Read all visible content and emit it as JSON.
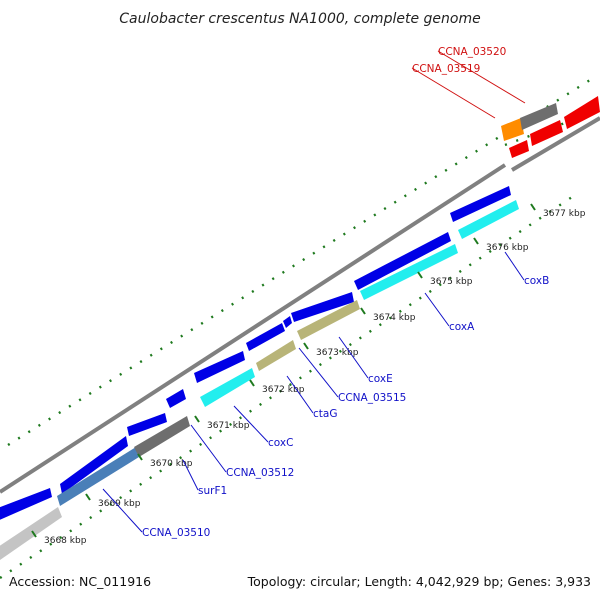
{
  "title": "Caulobacter crescentus NA1000, complete genome",
  "footer": {
    "accession": "Accession: NC_011916",
    "summary": "Topology: circular; Length: 4,042,929 bp; Genes: 3,933"
  },
  "colors": {
    "background": "#ffffff",
    "backbone": "#808080",
    "tick": "#1f7a1f",
    "label_blue": "#1010c8",
    "label_red": "#d01010",
    "blue": "#0000e6",
    "cyan": "#22eeee",
    "khaki": "#b8b478",
    "gray": "#6e6e6e",
    "lightgray": "#c4c4c4",
    "steel": "#4a7fb8",
    "red": "#f00000",
    "orange": "#ff8c00"
  },
  "kbp_ticks": [
    {
      "label": "3668 kbp"
    },
    {
      "label": "3669 kbp"
    },
    {
      "label": "3670 kbp"
    },
    {
      "label": "3671 kbp"
    },
    {
      "label": "3672 kbp"
    },
    {
      "label": "3673 kbp"
    },
    {
      "label": "3674 kbp"
    },
    {
      "label": "3675 kbp"
    },
    {
      "label": "3676 kbp"
    },
    {
      "label": "3677 kbp"
    }
  ],
  "gene_labels": [
    {
      "name": "CCNA_03510",
      "color": "blue"
    },
    {
      "name": "surF1",
      "color": "blue"
    },
    {
      "name": "CCNA_03512",
      "color": "blue"
    },
    {
      "name": "coxC",
      "color": "blue"
    },
    {
      "name": "ctaG",
      "color": "blue"
    },
    {
      "name": "CCNA_03515",
      "color": "blue"
    },
    {
      "name": "coxE",
      "color": "blue"
    },
    {
      "name": "coxA",
      "color": "blue"
    },
    {
      "name": "coxB",
      "color": "blue"
    },
    {
      "name": "CCNA_03519",
      "color": "red"
    },
    {
      "name": "CCNA_03520",
      "color": "red"
    }
  ],
  "feature_blocks": [
    {
      "track": "a",
      "color": "blue"
    },
    {
      "track": "a",
      "color": "blue"
    },
    {
      "track": "a",
      "color": "blue"
    },
    {
      "track": "a",
      "color": "blue"
    },
    {
      "track": "a",
      "color": "blue"
    },
    {
      "track": "a",
      "color": "blue"
    },
    {
      "track": "a",
      "color": "blue"
    },
    {
      "track": "a",
      "color": "blue"
    },
    {
      "track": "a",
      "color": "blue"
    },
    {
      "track": "a",
      "color": "blue"
    },
    {
      "track": "b",
      "color": "lightgray"
    },
    {
      "track": "b",
      "color": "steel"
    },
    {
      "track": "b",
      "color": "gray"
    },
    {
      "track": "b",
      "color": "cyan"
    },
    {
      "track": "b",
      "color": "khaki"
    },
    {
      "track": "b",
      "color": "khaki"
    },
    {
      "track": "b",
      "color": "cyan"
    },
    {
      "track": "b",
      "color": "cyan"
    },
    {
      "track": "a",
      "color": "orange"
    },
    {
      "track": "a",
      "color": "gray"
    },
    {
      "track": "a",
      "color": "red"
    },
    {
      "track": "b",
      "color": "red"
    },
    {
      "track": "b",
      "color": "red"
    }
  ]
}
